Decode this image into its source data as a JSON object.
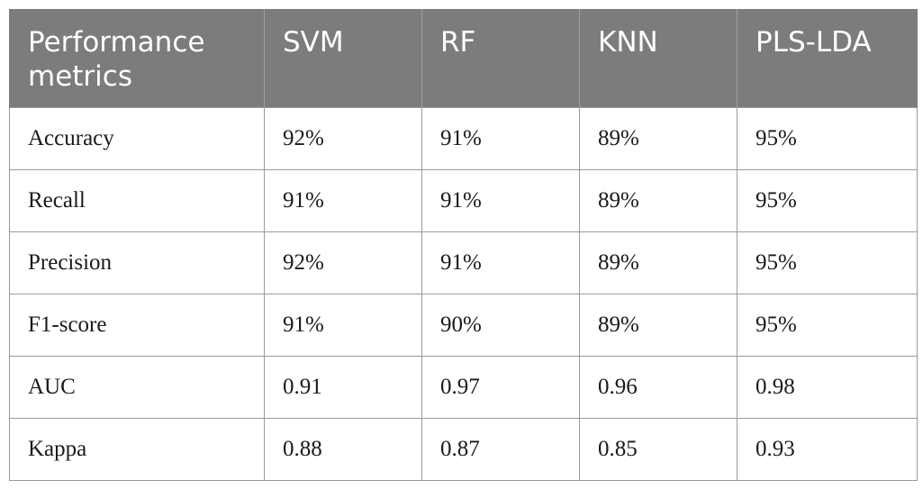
{
  "table": {
    "headers": [
      "Performance metrics",
      "SVM",
      "RF",
      "KNN",
      "PLS-LDA"
    ],
    "rows": [
      [
        "Accuracy",
        "92%",
        "91%",
        "89%",
        "95%"
      ],
      [
        "Recall",
        "91%",
        "91%",
        "89%",
        "95%"
      ],
      [
        "Precision",
        "92%",
        "91%",
        "89%",
        "95%"
      ],
      [
        "F1-score",
        "91%",
        "90%",
        "89%",
        "95%"
      ],
      [
        "AUC",
        "0.91",
        "0.97",
        "0.96",
        "0.98"
      ],
      [
        "Kappa",
        "0.88",
        "0.87",
        "0.85",
        "0.93"
      ]
    ]
  },
  "colors": {
    "header_background": "#7b7c7b",
    "header_text": "#ffffff",
    "grid_line": "#9a9a9a"
  }
}
